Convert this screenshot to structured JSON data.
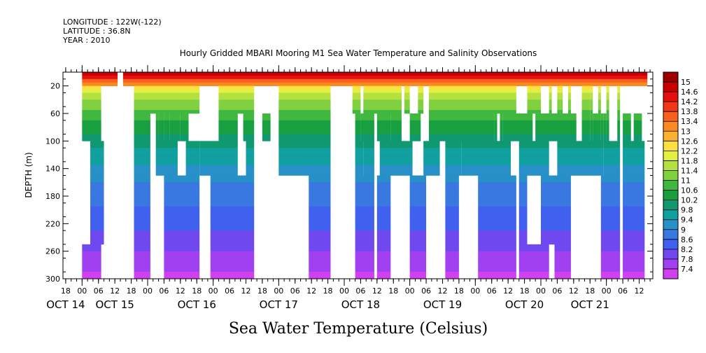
{
  "header": {
    "longitude": "LONGITUDE : 122W(-122)",
    "latitude": "LATITUDE : 36.8N",
    "year": "YEAR : 2010"
  },
  "chart_data": {
    "type": "heatmap",
    "title": "Hourly Gridded MBARI Mooring M1 Sea Water Temperature and Salinity Observations",
    "subtitle": "Sea Water Temperature (Celsius)",
    "ylabel": "DEPTH (m)",
    "x_range_hours": [
      -7,
      209
    ],
    "y_range_m": [
      0,
      300
    ],
    "y_reversed": true,
    "y_ticks": [
      20,
      60,
      100,
      140,
      180,
      220,
      260,
      300
    ],
    "x_hour_ticks": [
      "18",
      "00",
      "06",
      "12",
      "18",
      "00",
      "06",
      "12",
      "18",
      "00",
      "06",
      "12",
      "18",
      "00",
      "06",
      "12",
      "18",
      "00",
      "06",
      "12",
      "18",
      "00",
      "06",
      "12",
      "18",
      "00",
      "06",
      "12",
      "18",
      "00",
      "06",
      "12",
      "18",
      "00",
      "06",
      "12"
    ],
    "x_hour_tick_positions_h": [
      -6,
      0,
      6,
      12,
      18,
      24,
      30,
      36,
      42,
      48,
      54,
      60,
      66,
      72,
      78,
      84,
      90,
      96,
      102,
      108,
      114,
      120,
      126,
      132,
      138,
      144,
      150,
      156,
      162,
      168,
      174,
      180,
      186,
      192,
      198,
      204
    ],
    "date_labels": [
      {
        "label": "OCT 14",
        "h": -6
      },
      {
        "label": "OCT 15",
        "h": 12
      },
      {
        "label": "OCT 16",
        "h": 42
      },
      {
        "label": "OCT 17",
        "h": 72
      },
      {
        "label": "OCT 18",
        "h": 102
      },
      {
        "label": "OCT 19",
        "h": 132
      },
      {
        "label": "OCT 20",
        "h": 162
      },
      {
        "label": "OCT 21",
        "h": 186
      }
    ],
    "depth_bins": [
      0,
      20,
      60,
      100,
      150,
      250,
      300
    ],
    "colorbar": {
      "labels": [
        "15",
        "14.6",
        "14.2",
        "13.8",
        "13.4",
        "13",
        "12.6",
        "12.2",
        "11.8",
        "11.4",
        "11",
        "10.6",
        "10.2",
        "9.8",
        "9.4",
        "9",
        "8.6",
        "8.2",
        "7.8",
        "7.4"
      ],
      "colors": [
        "#9c0000",
        "#c80000",
        "#e41010",
        "#f03818",
        "#f86020",
        "#fc8820",
        "#fcb030",
        "#fce040",
        "#e4f040",
        "#b4e040",
        "#80d040",
        "#40b840",
        "#18a040",
        "#109870",
        "#10a0a0",
        "#2890c8",
        "#3878e0",
        "#4060f0",
        "#7048f0",
        "#a040f0",
        "#d040f0"
      ],
      "min": 7.4,
      "max": 15.0
    },
    "temp_profile": {
      "depth_m": [
        5,
        12,
        25,
        40,
        60,
        90,
        120,
        150,
        180,
        210,
        240,
        270,
        300
      ],
      "temp_c": [
        14.6,
        13.6,
        12.0,
        11.4,
        10.8,
        10.3,
        9.8,
        9.3,
        9.0,
        8.7,
        8.4,
        8.0,
        7.6
      ]
    },
    "data_runs": [
      {
        "bin": 0,
        "ranges": [
          [
            0,
            12
          ],
          [
            15,
            206
          ]
        ]
      },
      {
        "bin": 1,
        "ranges": [
          [
            0,
            6
          ],
          [
            19,
            42
          ],
          [
            50,
            62
          ],
          [
            72,
            90
          ],
          [
            99,
            101
          ],
          [
            103,
            116
          ],
          [
            118,
            119
          ],
          [
            123,
            124
          ],
          [
            127,
            158
          ],
          [
            163,
            167
          ],
          [
            171,
            171
          ],
          [
            174,
            174
          ],
          [
            175,
            175
          ],
          [
            178,
            178
          ],
          [
            183,
            185
          ],
          [
            186,
            186
          ],
          [
            189,
            189
          ],
          [
            192,
            192
          ],
          [
            196,
            196
          ]
        ]
      },
      {
        "bin": 2,
        "ranges": [
          [
            0,
            6
          ],
          [
            19,
            24
          ],
          [
            27,
            27
          ],
          [
            28,
            28
          ],
          [
            29,
            29
          ],
          [
            30,
            31
          ],
          [
            32,
            35
          ],
          [
            36,
            38
          ],
          [
            50,
            56
          ],
          [
            59,
            62
          ],
          [
            66,
            68
          ],
          [
            72,
            90
          ],
          [
            100,
            101
          ],
          [
            102,
            106
          ],
          [
            108,
            112
          ],
          [
            113,
            116
          ],
          [
            120,
            123
          ],
          [
            127,
            150
          ],
          [
            151,
            151
          ],
          [
            153,
            153
          ],
          [
            154,
            164
          ],
          [
            166,
            180
          ],
          [
            183,
            185
          ],
          [
            186,
            186
          ],
          [
            187,
            188
          ],
          [
            189,
            189
          ],
          [
            190,
            190
          ],
          [
            191,
            191
          ],
          [
            192,
            192
          ],
          [
            196,
            196
          ],
          [
            198,
            200
          ],
          [
            202,
            204
          ]
        ]
      },
      {
        "bin": 3,
        "ranges": [
          [
            3,
            7
          ],
          [
            19,
            24
          ],
          [
            27,
            34
          ],
          [
            38,
            42
          ],
          [
            43,
            56
          ],
          [
            60,
            62
          ],
          [
            72,
            90
          ],
          [
            100,
            102
          ],
          [
            103,
            106
          ],
          [
            109,
            120
          ],
          [
            125,
            130
          ],
          [
            133,
            138
          ],
          [
            139,
            156
          ],
          [
            160,
            170
          ],
          [
            174,
            190
          ],
          [
            191,
            196
          ],
          [
            198,
            205
          ]
        ]
      },
      {
        "bin": 4,
        "ranges": [
          [
            3,
            7
          ],
          [
            19,
            24
          ],
          [
            30,
            42
          ],
          [
            47,
            62
          ],
          [
            83,
            90
          ],
          [
            100,
            106
          ],
          [
            108,
            112
          ],
          [
            120,
            125
          ],
          [
            133,
            137
          ],
          [
            145,
            158
          ],
          [
            160,
            162
          ],
          [
            168,
            178
          ],
          [
            190,
            196
          ],
          [
            198,
            205
          ]
        ]
      },
      {
        "bin": 5,
        "ranges": [
          [
            0,
            6
          ],
          [
            19,
            24
          ],
          [
            30,
            42
          ],
          [
            47,
            62
          ],
          [
            83,
            90
          ],
          [
            100,
            106
          ],
          [
            108,
            112
          ],
          [
            120,
            125
          ],
          [
            133,
            137
          ],
          [
            145,
            158
          ],
          [
            160,
            170
          ],
          [
            173,
            178
          ],
          [
            190,
            196
          ],
          [
            198,
            205
          ]
        ]
      }
    ]
  }
}
